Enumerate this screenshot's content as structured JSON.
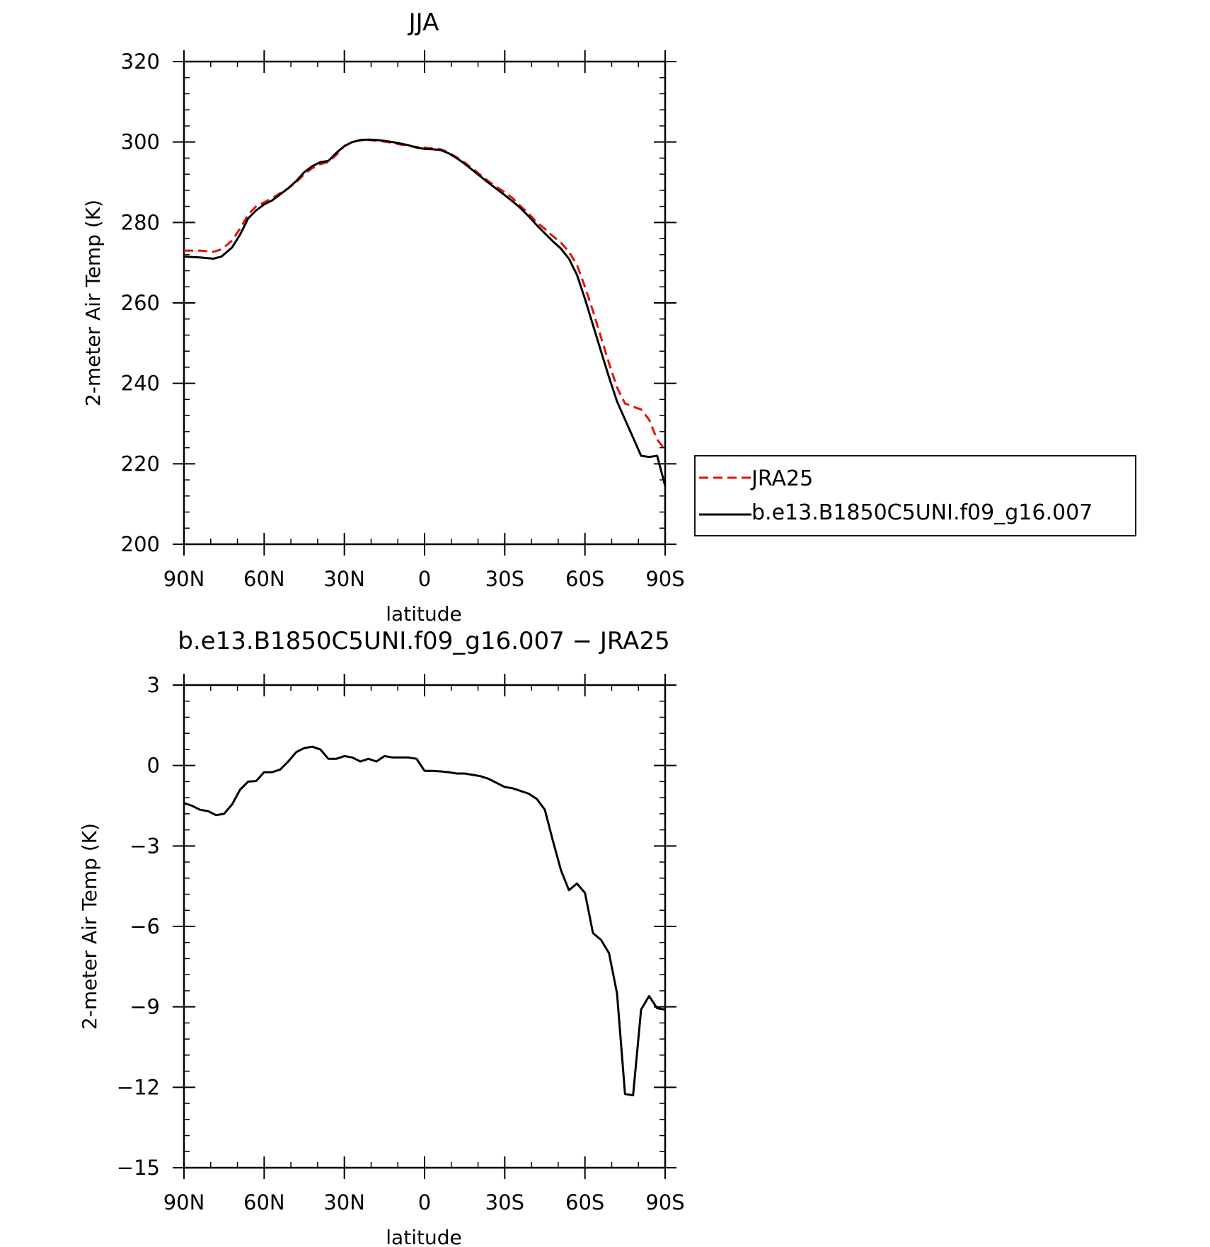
{
  "chart_data": [
    {
      "type": "line",
      "title": "JJA",
      "xlabel": "latitude",
      "ylabel": "2-meter Air Temp (K)",
      "ylim": [
        200,
        320
      ],
      "yticks": [
        200,
        220,
        240,
        260,
        280,
        300,
        320
      ],
      "xlim": [
        90,
        -90
      ],
      "xticks": [
        {
          "value": 90,
          "label": "90N"
        },
        {
          "value": 60,
          "label": "60N"
        },
        {
          "value": 30,
          "label": "30N"
        },
        {
          "value": 0,
          "label": "0"
        },
        {
          "value": -30,
          "label": "30S"
        },
        {
          "value": -60,
          "label": "60S"
        },
        {
          "value": -90,
          "label": "90S"
        }
      ],
      "legend": {
        "placement": "right",
        "entries": [
          {
            "label": "JRA25",
            "color": "#e3120b",
            "dash": true
          },
          {
            "label": "b.e13.B1850C5UNI.f09_g16.007",
            "color": "#000000",
            "dash": false
          }
        ]
      },
      "series": [
        {
          "name": "JRA25",
          "color": "#e3120b",
          "dash": true,
          "x": [
            90,
            84,
            79,
            76,
            72,
            69,
            66,
            63,
            60,
            57,
            54,
            51,
            48,
            45,
            42,
            39,
            36,
            33,
            30,
            27,
            24,
            21,
            18,
            15,
            12,
            9,
            6,
            3,
            0,
            -3,
            -6,
            -9,
            -12,
            -15,
            -18,
            -21,
            -24,
            -27,
            -30,
            -33,
            -36,
            -39,
            -42,
            -45,
            -48,
            -51,
            -54,
            -57,
            -60,
            -63,
            -66,
            -69,
            -72,
            -75,
            -78,
            -81,
            -84,
            -87,
            -90
          ],
          "values": [
            273.0,
            273.0,
            272.7,
            273.3,
            275.5,
            278.5,
            282.0,
            284.0,
            285.0,
            286.0,
            287.3,
            288.5,
            290.0,
            292.0,
            293.5,
            294.5,
            295.0,
            296.8,
            299.0,
            300.0,
            300.4,
            300.5,
            300.3,
            300.1,
            299.8,
            299.4,
            299.0,
            298.8,
            298.6,
            298.4,
            298.2,
            297.4,
            296.2,
            294.9,
            293.4,
            291.8,
            290.2,
            288.8,
            287.5,
            286.0,
            284.0,
            282.2,
            280.0,
            278.4,
            276.6,
            275.0,
            272.7,
            269.5,
            264.0,
            258.0,
            251.5,
            245.0,
            239.0,
            235.0,
            234.2,
            233.5,
            231.0,
            226.0,
            223.5
          ]
        },
        {
          "name": "b.e13.B1850C5UNI.f09_g16.007",
          "color": "#000000",
          "dash": false,
          "x": [
            90,
            84,
            79,
            76,
            72,
            69,
            66,
            63,
            60,
            57,
            54,
            51,
            48,
            45,
            42,
            39,
            36,
            33,
            30,
            27,
            24,
            21,
            18,
            15,
            12,
            9,
            6,
            3,
            0,
            -3,
            -6,
            -9,
            -12,
            -15,
            -18,
            -21,
            -24,
            -27,
            -30,
            -33,
            -36,
            -39,
            -42,
            -45,
            -48,
            -51,
            -54,
            -57,
            -60,
            -63,
            -66,
            -69,
            -72,
            -75,
            -78,
            -81,
            -84,
            -87,
            -90
          ],
          "values": [
            271.5,
            271.3,
            271.0,
            271.5,
            273.8,
            277.0,
            281.0,
            283.0,
            284.5,
            285.5,
            287.0,
            288.5,
            290.3,
            292.5,
            294.0,
            295.0,
            295.3,
            297.3,
            299.0,
            300.0,
            300.5,
            300.6,
            300.5,
            300.3,
            300.0,
            299.6,
            299.2,
            298.6,
            298.3,
            298.2,
            298.0,
            297.2,
            296.0,
            294.6,
            293.0,
            291.4,
            289.8,
            288.3,
            286.8,
            285.2,
            283.5,
            281.5,
            279.3,
            277.3,
            275.3,
            273.5,
            271.0,
            267.0,
            261.0,
            254.5,
            248.0,
            241.5,
            235.5,
            231.0,
            226.5,
            222.0,
            221.7,
            222.0,
            214.5
          ]
        }
      ]
    },
    {
      "type": "line",
      "title": "b.e13.B1850C5UNI.f09_g16.007 − JRA25",
      "xlabel": "latitude",
      "ylabel": "2-meter Air Temp (K)",
      "ylim": [
        -15,
        3
      ],
      "yticks": [
        -15,
        -12,
        -9,
        -6,
        -3,
        0,
        3
      ],
      "ytick_labels": [
        "−15",
        "−12",
        "−9",
        "−6",
        "−3",
        "0",
        "3"
      ],
      "xlim": [
        90,
        -90
      ],
      "xticks": [
        {
          "value": 90,
          "label": "90N"
        },
        {
          "value": 60,
          "label": "60N"
        },
        {
          "value": 30,
          "label": "30N"
        },
        {
          "value": 0,
          "label": "0"
        },
        {
          "value": -30,
          "label": "30S"
        },
        {
          "value": -60,
          "label": "60S"
        },
        {
          "value": -90,
          "label": "90S"
        }
      ],
      "series": [
        {
          "color": "#000000",
          "dash": false,
          "x": [
            90,
            87,
            84,
            81,
            78,
            75,
            72,
            69,
            66,
            63,
            60,
            57,
            54,
            51,
            48,
            45,
            42,
            39,
            36,
            33,
            30,
            27,
            24,
            21,
            18,
            15,
            12,
            9,
            6,
            3,
            0,
            -3,
            -6,
            -9,
            -12,
            -15,
            -18,
            -21,
            -24,
            -27,
            -30,
            -33,
            -36,
            -39,
            -42,
            -45,
            -48,
            -51,
            -54,
            -57,
            -60,
            -63,
            -66,
            -69,
            -72,
            -75,
            -78,
            -81,
            -84,
            -87,
            -90
          ],
          "values": [
            -1.4,
            -1.5,
            -1.65,
            -1.7,
            -1.85,
            -1.8,
            -1.45,
            -0.9,
            -0.6,
            -0.58,
            -0.25,
            -0.25,
            -0.15,
            0.15,
            0.5,
            0.65,
            0.7,
            0.6,
            0.25,
            0.25,
            0.35,
            0.3,
            0.15,
            0.25,
            0.15,
            0.35,
            0.3,
            0.3,
            0.3,
            0.25,
            -0.2,
            -0.2,
            -0.22,
            -0.25,
            -0.3,
            -0.3,
            -0.35,
            -0.4,
            -0.5,
            -0.65,
            -0.8,
            -0.85,
            -0.95,
            -1.05,
            -1.25,
            -1.65,
            -2.8,
            -3.9,
            -4.65,
            -4.4,
            -4.75,
            -6.25,
            -6.5,
            -7.0,
            -8.5,
            -12.25,
            -12.3,
            -9.1,
            -8.6,
            -9.05,
            -9.1
          ]
        }
      ]
    }
  ]
}
